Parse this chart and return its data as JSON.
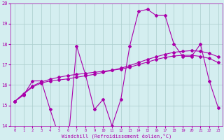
{
  "title": "",
  "xlabel": "Windchill (Refroidissement éolien,°C)",
  "background_color": "#d4eef0",
  "grid_color": "#aacccc",
  "line_color": "#aa00aa",
  "x": [
    0,
    1,
    2,
    3,
    4,
    5,
    6,
    7,
    8,
    9,
    10,
    11,
    12,
    13,
    14,
    15,
    16,
    17,
    18,
    19,
    20,
    21,
    22,
    23
  ],
  "windchill": [
    15.2,
    15.5,
    16.2,
    16.2,
    14.8,
    13.5,
    13.0,
    17.9,
    16.5,
    14.8,
    15.3,
    14.0,
    15.3,
    17.9,
    19.6,
    19.7,
    19.4,
    19.4,
    18.0,
    17.4,
    17.4,
    18.0,
    16.2,
    14.9
  ],
  "trend1": [
    15.2,
    15.55,
    15.9,
    16.1,
    16.2,
    16.25,
    16.3,
    16.38,
    16.45,
    16.52,
    16.62,
    16.72,
    16.82,
    16.95,
    17.1,
    17.25,
    17.38,
    17.5,
    17.6,
    17.65,
    17.68,
    17.65,
    17.55,
    17.38
  ],
  "trend2": [
    15.2,
    15.58,
    15.95,
    16.15,
    16.28,
    16.38,
    16.46,
    16.52,
    16.57,
    16.62,
    16.67,
    16.72,
    16.78,
    16.87,
    17.0,
    17.12,
    17.25,
    17.35,
    17.42,
    17.45,
    17.45,
    17.4,
    17.3,
    17.1
  ],
  "ylim": [
    14,
    20
  ],
  "yticks": [
    14,
    15,
    16,
    17,
    18,
    19,
    20
  ],
  "xticks": [
    0,
    1,
    2,
    3,
    4,
    5,
    6,
    7,
    8,
    9,
    10,
    11,
    12,
    13,
    14,
    15,
    16,
    17,
    18,
    19,
    20,
    21,
    22,
    23
  ],
  "marker": "D",
  "markersize": 2,
  "linewidth": 0.8
}
